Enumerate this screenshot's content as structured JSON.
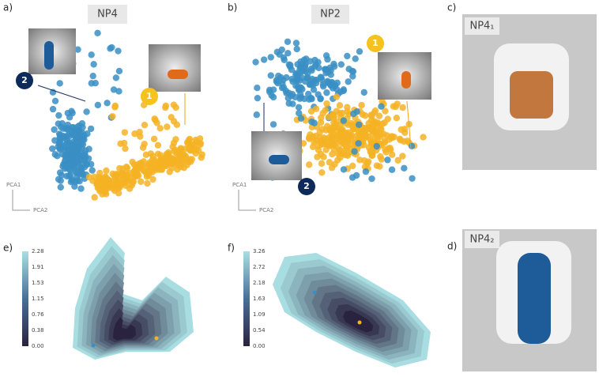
{
  "panel_a": {
    "label": "a)",
    "title": "NP4",
    "marker_1": "1",
    "marker_2": "2",
    "axis_y": "PCA1",
    "axis_x": "PCA2"
  },
  "panel_b": {
    "label": "b)",
    "title": "NP2",
    "marker_1": "1",
    "marker_2": "2",
    "axis_y": "PCA1",
    "axis_x": "PCA2"
  },
  "panel_c": {
    "label": "c)",
    "title": "NP4₁"
  },
  "panel_d": {
    "label": "d)",
    "title": "NP4₂"
  },
  "panel_e": {
    "label": "e)",
    "colorbar_ticks": [
      "2.28",
      "1.91",
      "1.53",
      "1.15",
      "0.76",
      "0.38",
      "0.00"
    ]
  },
  "panel_f": {
    "label": "f)",
    "colorbar_ticks": [
      "3.26",
      "2.72",
      "2.18",
      "1.63",
      "1.09",
      "0.54",
      "0.00"
    ]
  }
}
